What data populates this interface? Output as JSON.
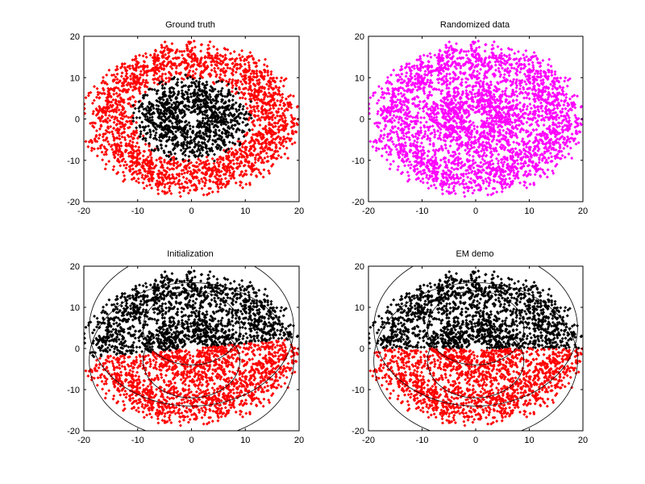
{
  "figure": {
    "background": "#ffffff"
  },
  "chart_data": [
    {
      "type": "scatter",
      "title": "Ground truth",
      "xlabel": "",
      "ylabel": "",
      "xlim": [
        -20,
        20
      ],
      "ylim": [
        -20,
        20
      ],
      "xticks": [
        -20,
        -10,
        0,
        10,
        20
      ],
      "yticks": [
        -20,
        -10,
        0,
        10,
        20
      ],
      "grid": false,
      "contours": false,
      "series": [
        {
          "color": "#ff0000",
          "marker": "diamond",
          "shape": "ring",
          "center": [
            0,
            0
          ],
          "r_inner": 12,
          "r_outer": 19,
          "count": 2200
        },
        {
          "color": "#000000",
          "marker": "diamond",
          "shape": "ring",
          "center": [
            0,
            0
          ],
          "r_inner": 3,
          "r_outer": 10,
          "count": 1100
        }
      ]
    },
    {
      "type": "scatter",
      "title": "Randomized data",
      "xlabel": "",
      "ylabel": "",
      "xlim": [
        -20,
        20
      ],
      "ylim": [
        -20,
        20
      ],
      "xticks": [
        -20,
        -10,
        0,
        10,
        20
      ],
      "yticks": [
        -20,
        -10,
        0,
        10,
        20
      ],
      "grid": false,
      "contours": false,
      "series": [
        {
          "color": "#ff00ff",
          "marker": "diamond",
          "shape": "ring",
          "center": [
            0,
            0
          ],
          "r_inner": 12,
          "r_outer": 19,
          "count": 2200
        },
        {
          "color": "#ff00ff",
          "marker": "diamond",
          "shape": "ring",
          "center": [
            0,
            0
          ],
          "r_inner": 3,
          "r_outer": 10,
          "count": 1100
        }
      ]
    },
    {
      "type": "scatter",
      "title": "Initialization",
      "xlabel": "",
      "ylabel": "",
      "xlim": [
        -20,
        20
      ],
      "ylim": [
        -20,
        20
      ],
      "xticks": [
        -20,
        -10,
        0,
        10,
        20
      ],
      "yticks": [
        -20,
        -10,
        0,
        10,
        20
      ],
      "grid": false,
      "split": {
        "y0": 0,
        "slope": 0.12,
        "above_color": "#000000",
        "below_color": "#ff0000"
      },
      "series": [
        {
          "color": "split",
          "marker": "diamond",
          "shape": "ring",
          "center": [
            0,
            0
          ],
          "r_inner": 12,
          "r_outer": 19,
          "count": 2200
        },
        {
          "color": "split",
          "marker": "diamond",
          "shape": "ring",
          "center": [
            0,
            0
          ],
          "r_inner": 3,
          "r_outer": 10,
          "count": 1100
        }
      ],
      "contours": [
        {
          "cx": 0,
          "cy": 5,
          "r": 9
        },
        {
          "cx": 0,
          "cy": 5,
          "r": 19
        },
        {
          "cx": 0,
          "cy": -3,
          "r": 9
        },
        {
          "cx": 0,
          "cy": -3,
          "r": 19
        }
      ]
    },
    {
      "type": "scatter",
      "title": "EM demo",
      "xlabel": "",
      "ylabel": "",
      "xlim": [
        -20,
        20
      ],
      "ylim": [
        -20,
        20
      ],
      "xticks": [
        -20,
        -10,
        0,
        10,
        20
      ],
      "yticks": [
        -20,
        -10,
        0,
        10,
        20
      ],
      "grid": false,
      "split": {
        "y0": 0,
        "slope": 0,
        "above_color": "#000000",
        "below_color": "#ff0000"
      },
      "series": [
        {
          "color": "split",
          "marker": "diamond",
          "shape": "ring",
          "center": [
            0,
            0
          ],
          "r_inner": 12,
          "r_outer": 19,
          "count": 2200
        },
        {
          "color": "split",
          "marker": "diamond",
          "shape": "ring",
          "center": [
            0,
            0
          ],
          "r_inner": 3,
          "r_outer": 10,
          "count": 1100
        }
      ],
      "contours": [
        {
          "cx": 0,
          "cy": 5,
          "r": 9
        },
        {
          "cx": 0,
          "cy": 5,
          "r": 19
        },
        {
          "cx": 0,
          "cy": -3,
          "r": 9
        },
        {
          "cx": 0,
          "cy": -3,
          "r": 19
        }
      ]
    }
  ]
}
